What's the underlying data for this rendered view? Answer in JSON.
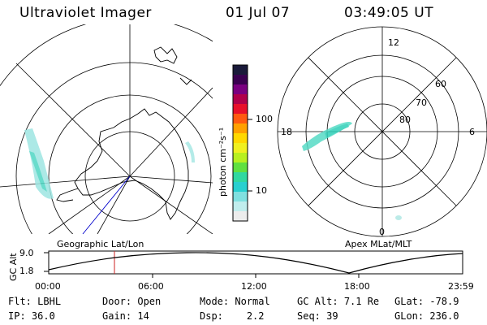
{
  "header": {
    "instrument": "Ultraviolet Imager",
    "date": "01 Jul 07",
    "time": "03:49:05 UT"
  },
  "colorbar": {
    "unit_label": "photon cm⁻²s⁻¹",
    "ticks": [
      "100",
      "10"
    ],
    "colors": [
      "#1a1a3a",
      "#3a0050",
      "#7a0080",
      "#b0004a",
      "#e8102a",
      "#ff5a10",
      "#ffa000",
      "#ffd800",
      "#f0f020",
      "#b8f020",
      "#60e040",
      "#30d8a0",
      "#28d0d0",
      "#80e0e0",
      "#c0eded",
      "#ececec"
    ]
  },
  "geo_panel": {
    "label": "Geographic Lat/Lon"
  },
  "apex_panel": {
    "label": "Apex MLat/MLT",
    "mlt_labels": [
      "12",
      "18",
      "6",
      "0"
    ],
    "lat_labels": [
      "60",
      "70",
      "80"
    ]
  },
  "altitude_plot": {
    "ylabel": "GC Alt",
    "y_ticks": [
      "9.0",
      "1.8"
    ],
    "x_ticks": [
      "00:00",
      "06:00",
      "12:00",
      "18:00",
      "23:59"
    ],
    "marker_time": "03:49",
    "marker_color": "#cc2222"
  },
  "status": {
    "row1": [
      {
        "key": "Flt:",
        "value": "LBHL"
      },
      {
        "key": "Door:",
        "value": "Open"
      },
      {
        "key": "Mode:",
        "value": "Normal"
      },
      {
        "key": "GC Alt:",
        "value": "7.1 Re"
      },
      {
        "key": "GLat:",
        "value": "-78.9"
      }
    ],
    "row2": [
      {
        "key": "IP:",
        "value": "36.0"
      },
      {
        "key": "Gain:",
        "value": "14"
      },
      {
        "key": "Dsp:",
        "value": "2.2"
      },
      {
        "key": "Seq:",
        "value": "39"
      },
      {
        "key": "GLon:",
        "value": "236.0"
      }
    ]
  }
}
